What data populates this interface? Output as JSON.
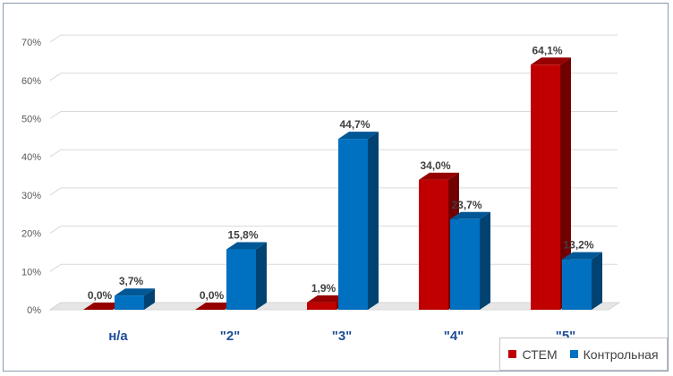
{
  "chart_data": {
    "type": "bar",
    "categories": [
      "н/а",
      "\"2\"",
      "\"3\"",
      "\"4\"",
      "\"5\""
    ],
    "series": [
      {
        "name": "СТЕМ",
        "color": "#c00000",
        "values": [
          0.0,
          0.0,
          1.9,
          34.0,
          64.1
        ],
        "labels": [
          "0,0%",
          "0,0%",
          "1,9%",
          "34,0%",
          "64,1%"
        ]
      },
      {
        "name": "Контрольная",
        "color": "#0070c0",
        "values": [
          3.7,
          15.8,
          44.7,
          23.7,
          13.2
        ],
        "labels": [
          "3,7%",
          "15,8%",
          "44,7%",
          "23,7%",
          "13,2%"
        ]
      }
    ],
    "y_ticks": [
      "0%",
      "10%",
      "20%",
      "30%",
      "40%",
      "50%",
      "60%",
      "70%"
    ],
    "ylim": [
      0,
      70
    ],
    "grid": true,
    "legend_position": "bottom-right"
  }
}
